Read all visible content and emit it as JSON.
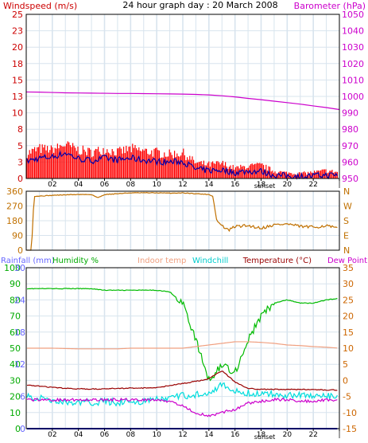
{
  "header": {
    "title": "24 hour graph day : 20 March 2008",
    "left_label": "Windspeed (m/s)",
    "right_label": "Barometer (hPa)"
  },
  "colors": {
    "wind_label": "#cc0000",
    "baro_label": "#cc00cc",
    "wind_bar": "#ff0000",
    "wind_avg": "#0000aa",
    "baro": "#cc00cc",
    "direction": "#c07000",
    "humidity": "#00bb00",
    "indoor": "#f0a080",
    "windchill": "#00dddd",
    "temperature": "#990000",
    "dewpoint": "#cc00cc",
    "rainfall": "#0000cc",
    "rain_axis": "#6666ff",
    "hum_axis": "#00aa00",
    "temp_axis": "#cc6600",
    "grid": "#d8e4ee",
    "axis": "#000000",
    "panel_border": "#000000"
  },
  "x_axis": {
    "ticks": [
      "02",
      "04",
      "06",
      "08",
      "10",
      "12",
      "14",
      "16",
      "18",
      "20",
      "22",
      "|"
    ],
    "event_label": "sunset"
  },
  "chart_data": [
    {
      "type": "bar",
      "title": "24 hour graph day : 20 March 2008",
      "ylabel": "Windspeed (m/s)",
      "ylabel_right": "Barometer (hPa)",
      "ylim": [
        0,
        25
      ],
      "y_ticks": [
        "0",
        "3",
        "5",
        "8",
        "10",
        "13",
        "15",
        "18",
        "20",
        "23",
        "25"
      ],
      "y2lim": [
        950,
        1050
      ],
      "y2_ticks": [
        "950",
        "960",
        "970",
        "980",
        "990",
        "1000",
        "1010",
        "1020",
        "1030",
        "1040",
        "1050"
      ],
      "x_hours": [
        0,
        1,
        2,
        3,
        4,
        5,
        6,
        7,
        8,
        9,
        10,
        11,
        12,
        13,
        14,
        15,
        16,
        17,
        18,
        19,
        20,
        21,
        22,
        23,
        24
      ],
      "series": [
        {
          "values": [
            4.2,
            5.0,
            4.8,
            5.6,
            4.8,
            4.4,
            4.9,
            4.4,
            5.0,
            4.6,
            4.4,
            4.1,
            4.3,
            2.7,
            2.4,
            2.6,
            1.8,
            2.1,
            2.3,
            1.3,
            1.0,
            0.9,
            1.1,
            1.4,
            1.1
          ]
        },
        {
          "values": [
            2.6,
            3.1,
            3.3,
            3.9,
            3.0,
            2.7,
            3.1,
            2.8,
            3.1,
            2.8,
            2.6,
            2.5,
            2.6,
            1.4,
            1.2,
            1.3,
            0.9,
            1.1,
            1.1,
            0.5,
            0.4,
            0.3,
            0.4,
            0.5,
            0.5
          ]
        },
        {
          "axis": "right",
          "values": [
            1002.7,
            1002.6,
            1002.4,
            1002.2,
            1002.1,
            1002.0,
            1001.9,
            1001.8,
            1001.8,
            1001.7,
            1001.6,
            1001.5,
            1001.4,
            1001.2,
            1000.9,
            1000.4,
            999.7,
            998.8,
            998.0,
            997.1,
            996.2,
            995.3,
            994.2,
            993.2,
            992.0
          ]
        }
      ]
    },
    {
      "type": "line",
      "ylim": [
        0,
        360
      ],
      "y_ticks": [
        "0",
        "90",
        "180",
        "270",
        "360"
      ],
      "y2_ticks": [
        "N",
        "E",
        "S",
        "W",
        "N"
      ],
      "x_hours": [
        0,
        0.4,
        0.6,
        1.0,
        2.0,
        3.0,
        4.0,
        5.0,
        5.5,
        6.0,
        7.0,
        8.0,
        9.0,
        10.0,
        11.0,
        12.0,
        13.0,
        14.0,
        14.3,
        14.6,
        15.0,
        15.5,
        16.0,
        17.0,
        18.0,
        19.0,
        20.0,
        21.0,
        22.0,
        23.0,
        24.0
      ],
      "values": [
        0,
        0,
        330,
        330,
        335,
        338,
        340,
        340,
        320,
        340,
        345,
        350,
        350,
        350,
        348,
        350,
        345,
        340,
        330,
        180,
        150,
        120,
        145,
        150,
        135,
        155,
        160,
        145,
        140,
        150,
        130
      ]
    },
    {
      "type": "line",
      "left_labels": [
        "Rainfall (mm)",
        "Humidity %",
        "Indoor temp",
        "Windchill"
      ],
      "right_labels": [
        "Temperature (°C)",
        "Dew Point"
      ],
      "y_ticks_rain": [
        "0",
        "6",
        "12",
        "18",
        "24",
        "30"
      ],
      "y_ticks_humidity": [
        "0",
        "10",
        "20",
        "30",
        "40",
        "50",
        "60",
        "70",
        "80",
        "90",
        "100"
      ],
      "y_ticks_temp": [
        "-15",
        "-10",
        "-5",
        "0",
        "5",
        "10",
        "15",
        "20",
        "25",
        "30",
        "35"
      ],
      "x_hours": [
        0,
        1,
        2,
        3,
        4,
        5,
        6,
        7,
        8,
        9,
        10,
        11,
        12,
        13,
        14,
        15,
        16,
        17,
        18,
        19,
        20,
        21,
        22,
        23,
        24
      ],
      "series": [
        {
          "axis": "humidity",
          "values": [
            87,
            87,
            87,
            87,
            87,
            87,
            86,
            86,
            86,
            86,
            86,
            85,
            78,
            55,
            30,
            40,
            35,
            55,
            70,
            78,
            80,
            78,
            78,
            80,
            81
          ]
        },
        {
          "axis": "temperature",
          "values": [
            10.0,
            10.0,
            10.0,
            9.9,
            9.8,
            9.8,
            9.8,
            9.8,
            10.0,
            10.0,
            10.0,
            10.0,
            10.0,
            10.5,
            11.0,
            11.5,
            12.0,
            12.0,
            11.8,
            11.5,
            11.0,
            10.8,
            10.5,
            10.3,
            10.0
          ]
        },
        {
          "axis": "temperature",
          "values": [
            -5.0,
            -5.5,
            -6.2,
            -6.8,
            -7.0,
            -7.0,
            -6.5,
            -6.8,
            -6.5,
            -6.6,
            -6.0,
            -5.5,
            -4.8,
            -4.5,
            -3.5,
            -1.5,
            -3.5,
            -4.0,
            -4.2,
            -4.3,
            -4.5,
            -4.5,
            -4.8,
            -5.0,
            -5.0
          ]
        },
        {
          "axis": "temperature",
          "values": [
            -1.5,
            -1.8,
            -2.2,
            -2.5,
            -2.6,
            -2.7,
            -2.6,
            -2.5,
            -2.4,
            -2.4,
            -2.2,
            -1.6,
            -1.0,
            -0.3,
            0.5,
            3.0,
            -0.5,
            -2.5,
            -2.8,
            -2.8,
            -2.8,
            -2.8,
            -2.9,
            -3.0,
            -3.0
          ]
        },
        {
          "axis": "temperature",
          "values": [
            -6.0,
            -6.1,
            -6.1,
            -6.0,
            -6.0,
            -6.0,
            -6.0,
            -6.0,
            -6.0,
            -6.0,
            -6.0,
            -6.5,
            -8.0,
            -10.0,
            -11.0,
            -10.0,
            -9.0,
            -7.0,
            -6.5,
            -6.0,
            -6.0,
            -6.5,
            -6.5,
            -6.0,
            -6.5
          ]
        },
        {
          "axis": "rain",
          "values": [
            0,
            0,
            0,
            0,
            0,
            0,
            0,
            0,
            0,
            0,
            0,
            0,
            0,
            0,
            0,
            0,
            0,
            0,
            0,
            0,
            0,
            0,
            0,
            0,
            0
          ]
        }
      ]
    }
  ]
}
